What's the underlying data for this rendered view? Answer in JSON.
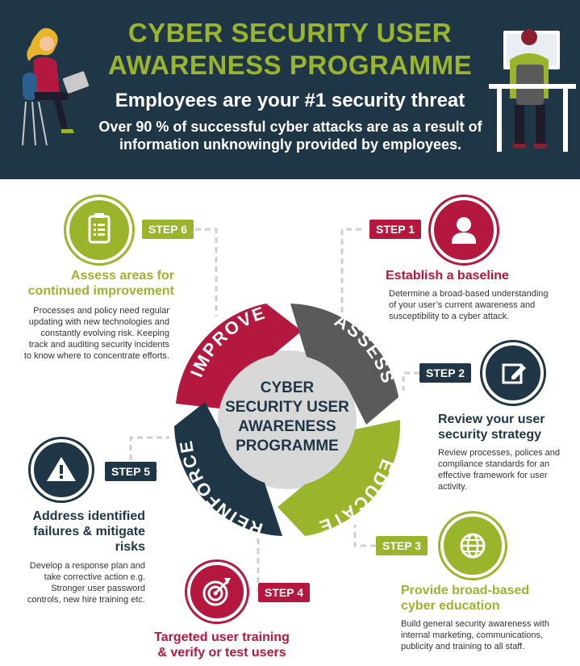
{
  "header": {
    "title_line1": "CYBER SECURITY USER",
    "title_line2": "AWARENESS PROGRAMME",
    "subtitle": "Employees are your #1 security threat",
    "note_line1": "Over 90 % of successful cyber attacks are as a result of",
    "note_line2": "information unknowingly provided by employees."
  },
  "center": {
    "line1": "CYBER",
    "line2": "SECURITY USER",
    "line3": "AWARENESS",
    "line4": "PROGRAMME"
  },
  "ring": {
    "assess": "ASSESS",
    "educate": "EDUCATE",
    "reinforce": "REINFORCE",
    "improve": "IMPROVE"
  },
  "steps": [
    {
      "tag": "STEP 1",
      "icon": "user-icon",
      "title_line1": "Establish a baseline",
      "title_line2": "",
      "desc": [
        "Determine a broad-based understanding",
        "of your user’s current awareness and",
        "susceptibility to a cyber attack."
      ]
    },
    {
      "tag": "STEP 2",
      "icon": "edit-icon",
      "title_line1": "Review your user",
      "title_line2": "security strategy",
      "desc": [
        "Review processes, polices and",
        "compliance standards for an",
        "effective framework for user",
        "activity."
      ]
    },
    {
      "tag": "STEP 3",
      "icon": "globe-icon",
      "title_line1": "Provide broad-based",
      "title_line2": "cyber education",
      "desc": [
        "Build general security awareness with",
        "internal marketing, communications,",
        "publicity and training to all staff."
      ]
    },
    {
      "tag": "STEP 4",
      "icon": "target-icon",
      "title_line1": "Targeted user training",
      "title_line2": "& verify or test users",
      "desc": []
    },
    {
      "tag": "STEP 5",
      "icon": "warning-icon",
      "title_line1": "Address identified",
      "title_line2": "failures & mitigate",
      "title_line3": "risks",
      "desc": [
        "Develop a response plan and",
        "take corrective action e.g.",
        "Stronger user password",
        "controls, new hire training etc."
      ]
    },
    {
      "tag": "STEP 6",
      "icon": "clipboard-icon",
      "title_line1": "Assess areas for",
      "title_line2": "continued improvement",
      "desc": [
        "Processes and policy need regular",
        "updating with new technologies and",
        "constantly evolving risk. Keeping",
        "track and auditing security incidents",
        "to know where to concentrate efforts."
      ]
    }
  ],
  "colors": {
    "navy": "#1f3646",
    "green": "#9ab52c",
    "crimson": "#b5183e",
    "grey": "#5a5a5a",
    "light_grey": "#d8d8d8"
  }
}
